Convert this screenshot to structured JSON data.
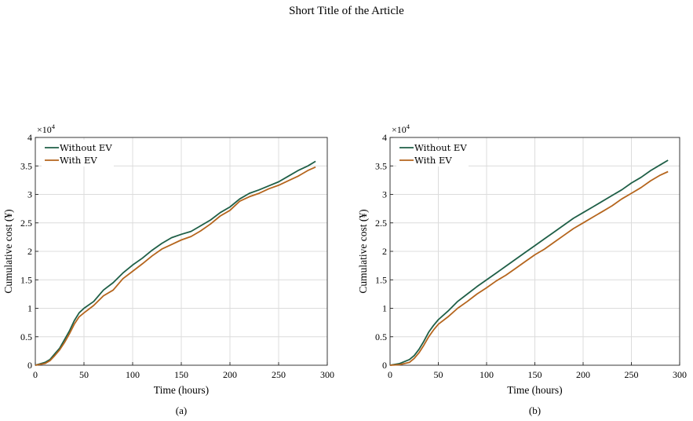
{
  "header": {
    "title": "Short Title of the Article"
  },
  "colors": {
    "without_ev": "#1f5f47",
    "with_ev": "#b5651d",
    "grid": "#dcdcdc"
  },
  "chart_data": [
    {
      "type": "line",
      "caption": "(a)",
      "xlabel": "Time (hours)",
      "ylabel": "Cumulative cost (¥)",
      "xlim": [
        0,
        300
      ],
      "ylim": [
        0,
        4
      ],
      "y_exponent_base": "×10",
      "y_exponent_power": "4",
      "xticks": [
        0,
        50,
        100,
        150,
        200,
        250,
        300
      ],
      "yticks": [
        0,
        0.5,
        1,
        1.5,
        2,
        2.5,
        3,
        3.5,
        4
      ],
      "grid": true,
      "legend_placement": "top-left",
      "series": [
        {
          "name": "Without EV",
          "color": "#1f5f47",
          "x": [
            0,
            10,
            15,
            20,
            25,
            30,
            35,
            40,
            45,
            50,
            60,
            70,
            80,
            90,
            100,
            110,
            120,
            130,
            140,
            150,
            160,
            170,
            180,
            190,
            200,
            210,
            220,
            230,
            240,
            250,
            260,
            270,
            280,
            288
          ],
          "y": [
            0,
            0.05,
            0.1,
            0.2,
            0.3,
            0.45,
            0.6,
            0.78,
            0.92,
            1.0,
            1.12,
            1.32,
            1.45,
            1.62,
            1.76,
            1.88,
            2.02,
            2.14,
            2.24,
            2.3,
            2.35,
            2.45,
            2.55,
            2.68,
            2.78,
            2.92,
            3.02,
            3.08,
            3.15,
            3.22,
            3.32,
            3.42,
            3.5,
            3.58
          ]
        },
        {
          "name": "With EV",
          "color": "#b5651d",
          "x": [
            0,
            10,
            15,
            20,
            25,
            30,
            35,
            40,
            45,
            50,
            60,
            70,
            80,
            90,
            100,
            110,
            120,
            130,
            140,
            150,
            160,
            170,
            180,
            190,
            200,
            210,
            220,
            230,
            240,
            250,
            260,
            270,
            280,
            288
          ],
          "y": [
            0,
            0.03,
            0.08,
            0.17,
            0.27,
            0.4,
            0.55,
            0.72,
            0.85,
            0.92,
            1.05,
            1.22,
            1.32,
            1.52,
            1.65,
            1.78,
            1.92,
            2.04,
            2.12,
            2.2,
            2.26,
            2.36,
            2.48,
            2.62,
            2.72,
            2.88,
            2.96,
            3.02,
            3.1,
            3.16,
            3.24,
            3.32,
            3.42,
            3.48
          ]
        }
      ]
    },
    {
      "type": "line",
      "caption": "(b)",
      "xlabel": "Time (hours)",
      "ylabel": "Cumulative cost (¥)",
      "xlim": [
        0,
        300
      ],
      "ylim": [
        0,
        4
      ],
      "y_exponent_base": "×10",
      "y_exponent_power": "4",
      "xticks": [
        0,
        50,
        100,
        150,
        200,
        250,
        300
      ],
      "yticks": [
        0,
        0.5,
        1,
        1.5,
        2,
        2.5,
        3,
        3.5,
        4
      ],
      "grid": true,
      "legend_placement": "top-left",
      "series": [
        {
          "name": "Without EV",
          "color": "#1f5f47",
          "x": [
            0,
            10,
            20,
            25,
            30,
            35,
            40,
            45,
            50,
            60,
            70,
            80,
            90,
            100,
            110,
            120,
            130,
            140,
            150,
            160,
            170,
            180,
            190,
            200,
            210,
            220,
            230,
            240,
            250,
            260,
            270,
            280,
            288
          ],
          "y": [
            0,
            0.03,
            0.1,
            0.17,
            0.28,
            0.42,
            0.58,
            0.7,
            0.8,
            0.95,
            1.12,
            1.25,
            1.38,
            1.5,
            1.62,
            1.74,
            1.86,
            1.98,
            2.1,
            2.22,
            2.34,
            2.46,
            2.58,
            2.68,
            2.78,
            2.88,
            2.98,
            3.08,
            3.2,
            3.3,
            3.42,
            3.52,
            3.6
          ]
        },
        {
          "name": "With EV",
          "color": "#b5651d",
          "x": [
            0,
            10,
            20,
            25,
            30,
            35,
            40,
            45,
            50,
            60,
            70,
            80,
            90,
            100,
            110,
            120,
            130,
            140,
            150,
            160,
            170,
            180,
            190,
            200,
            210,
            220,
            230,
            240,
            250,
            260,
            270,
            280,
            288
          ],
          "y": [
            0,
            0.01,
            0.05,
            0.12,
            0.22,
            0.35,
            0.5,
            0.62,
            0.72,
            0.85,
            1.0,
            1.12,
            1.25,
            1.36,
            1.48,
            1.58,
            1.7,
            1.82,
            1.94,
            2.04,
            2.16,
            2.28,
            2.4,
            2.5,
            2.6,
            2.7,
            2.8,
            2.92,
            3.02,
            3.12,
            3.24,
            3.34,
            3.4
          ]
        }
      ]
    }
  ]
}
